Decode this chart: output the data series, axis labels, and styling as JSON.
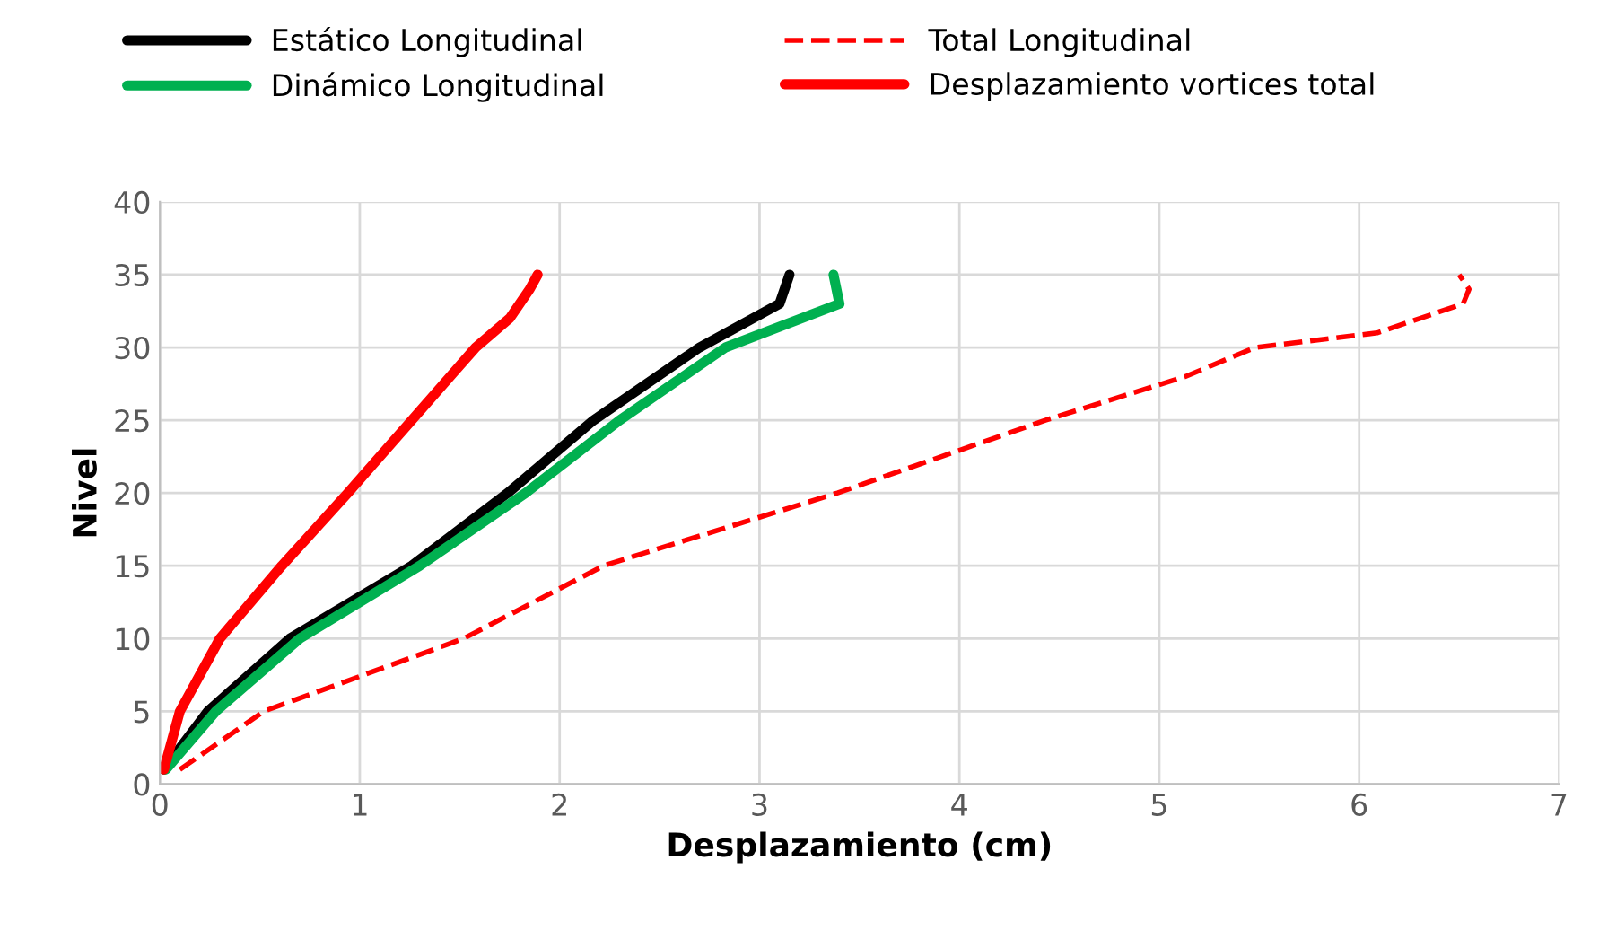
{
  "chart_data": {
    "type": "line",
    "xlabel": "Desplazamiento (cm)",
    "ylabel": "Nivel",
    "xlim": [
      0,
      7
    ],
    "xticks": [
      0,
      1,
      2,
      3,
      4,
      5,
      6,
      7
    ],
    "ylim": [
      0,
      40
    ],
    "yticks": [
      0,
      5,
      10,
      15,
      20,
      25,
      30,
      35,
      40
    ],
    "grid": true,
    "legend": "top",
    "marker": "none",
    "series": [
      {
        "name": "Estático Longitudinal",
        "color": "#000000",
        "line_style": "solid",
        "x": [
          0.02,
          0.24,
          0.65,
          1.26,
          1.74,
          2.17,
          2.7,
          3.1,
          3.15
        ],
        "values": [
          1,
          5,
          10,
          15,
          20,
          25,
          30,
          33,
          35
        ]
      },
      {
        "name": "Dinámico Longitudinal",
        "color": "#00b050",
        "line_style": "solid",
        "x": [
          0.03,
          0.28,
          0.7,
          1.3,
          1.83,
          2.3,
          2.83,
          3.4,
          3.37
        ],
        "values": [
          1,
          5,
          10,
          15,
          20,
          25,
          30,
          33,
          35
        ]
      },
      {
        "name": "Total Longitudinal",
        "color": "#ff0000",
        "line_style": "dashed",
        "x": [
          0.1,
          0.52,
          1.52,
          2.22,
          3.39,
          4.43,
          5.13,
          5.48,
          6.09,
          6.52,
          6.55,
          6.5
        ],
        "values": [
          1,
          5,
          10,
          15,
          20,
          25,
          28,
          30,
          31,
          33,
          34,
          35
        ]
      },
      {
        "name": "Desplazamiento vortices total",
        "color": "#ff0000",
        "line_style": "solid",
        "x": [
          0.02,
          0.1,
          0.3,
          0.61,
          0.94,
          1.26,
          1.58,
          1.75,
          1.85,
          1.89
        ],
        "values": [
          1,
          5,
          10,
          15,
          20,
          25,
          30,
          32,
          34,
          35
        ]
      }
    ]
  }
}
